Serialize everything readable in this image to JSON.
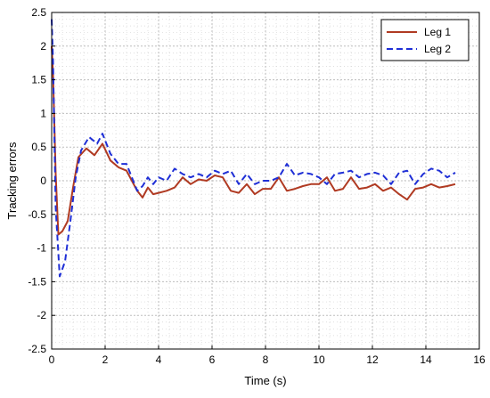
{
  "chart_data": {
    "type": "line",
    "title": "",
    "xlabel": "Time (s)",
    "ylabel": "Tracking errors",
    "xlim": [
      0,
      16
    ],
    "ylim": [
      -2.5,
      2.5
    ],
    "xticks": [
      0,
      2,
      4,
      6,
      8,
      10,
      12,
      14,
      16
    ],
    "yticks": [
      -2.5,
      -2,
      -1.5,
      -1,
      -0.5,
      0,
      0.5,
      1,
      1.5,
      2,
      2.5
    ],
    "grid": true,
    "minor_grid": true,
    "legend_position": "top-right",
    "series": [
      {
        "name": "Leg 1",
        "color": "#b03a22",
        "style": "solid",
        "x": [
          0,
          0.05,
          0.15,
          0.25,
          0.4,
          0.6,
          0.8,
          1.0,
          1.3,
          1.6,
          1.9,
          2.2,
          2.5,
          2.8,
          3.0,
          3.2,
          3.4,
          3.6,
          3.8,
          4.0,
          4.3,
          4.6,
          4.9,
          5.2,
          5.5,
          5.8,
          6.1,
          6.4,
          6.7,
          7.0,
          7.3,
          7.6,
          7.9,
          8.2,
          8.5,
          8.8,
          9.1,
          9.4,
          9.7,
          10.0,
          10.3,
          10.6,
          10.9,
          11.2,
          11.5,
          11.8,
          12.1,
          12.4,
          12.7,
          13.0,
          13.3,
          13.6,
          13.9,
          14.2,
          14.5,
          14.8,
          15.1
        ],
        "y": [
          2.0,
          1.6,
          0.1,
          -0.8,
          -0.75,
          -0.6,
          -0.1,
          0.35,
          0.48,
          0.38,
          0.55,
          0.3,
          0.2,
          0.15,
          0.0,
          -0.15,
          -0.25,
          -0.1,
          -0.2,
          -0.18,
          -0.15,
          -0.1,
          0.05,
          -0.05,
          0.02,
          0.0,
          0.08,
          0.05,
          -0.15,
          -0.18,
          -0.05,
          -0.2,
          -0.12,
          -0.12,
          0.05,
          -0.15,
          -0.12,
          -0.08,
          -0.05,
          -0.05,
          0.05,
          -0.15,
          -0.12,
          0.05,
          -0.12,
          -0.1,
          -0.05,
          -0.15,
          -0.1,
          -0.2,
          -0.28,
          -0.12,
          -0.1,
          -0.05,
          -0.1,
          -0.08,
          -0.05
        ]
      },
      {
        "name": "Leg 2",
        "color": "#1f2fd6",
        "style": "dashed",
        "x": [
          0,
          0.05,
          0.15,
          0.3,
          0.5,
          0.7,
          0.9,
          1.1,
          1.4,
          1.7,
          1.9,
          2.2,
          2.5,
          2.8,
          3.0,
          3.2,
          3.4,
          3.6,
          3.8,
          4.0,
          4.3,
          4.6,
          4.9,
          5.2,
          5.5,
          5.8,
          6.1,
          6.4,
          6.7,
          7.0,
          7.3,
          7.6,
          7.9,
          8.2,
          8.5,
          8.8,
          9.1,
          9.4,
          9.7,
          10.0,
          10.3,
          10.6,
          10.9,
          11.2,
          11.5,
          11.8,
          12.1,
          12.4,
          12.7,
          13.0,
          13.3,
          13.6,
          13.9,
          14.2,
          14.5,
          14.8,
          15.1
        ],
        "y": [
          2.4,
          1.8,
          -0.4,
          -1.42,
          -1.2,
          -0.6,
          0.05,
          0.45,
          0.65,
          0.55,
          0.7,
          0.4,
          0.25,
          0.25,
          0.05,
          -0.15,
          -0.08,
          0.05,
          -0.05,
          0.05,
          0.0,
          0.18,
          0.1,
          0.05,
          0.1,
          0.05,
          0.15,
          0.1,
          0.15,
          -0.05,
          0.1,
          -0.05,
          0.0,
          0.0,
          0.05,
          0.25,
          0.08,
          0.12,
          0.1,
          0.05,
          -0.05,
          0.1,
          0.12,
          0.15,
          0.05,
          0.1,
          0.12,
          0.08,
          -0.05,
          0.12,
          0.15,
          -0.05,
          0.1,
          0.18,
          0.15,
          0.05,
          0.12
        ]
      }
    ]
  }
}
